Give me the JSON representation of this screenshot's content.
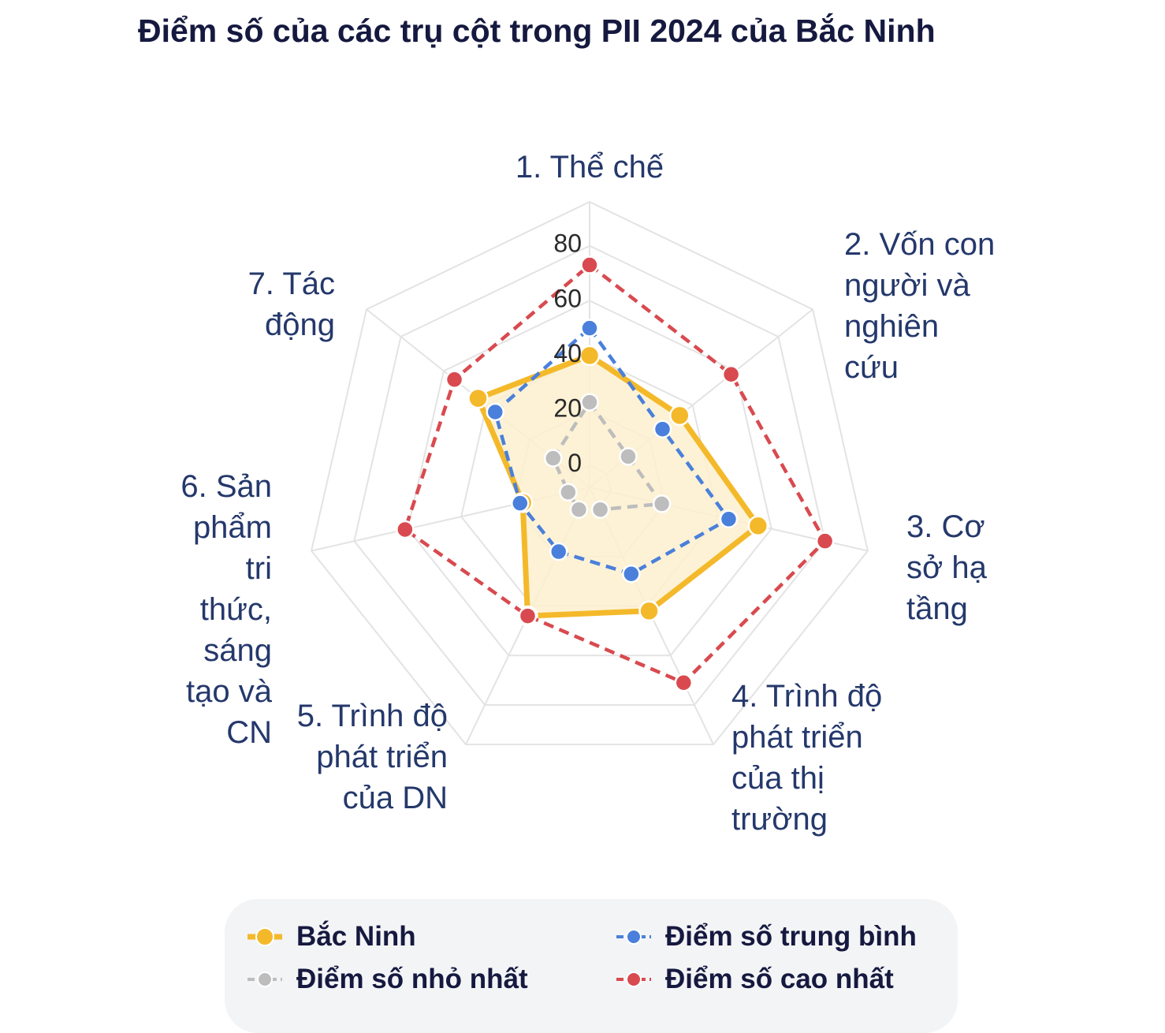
{
  "title": "Điểm số của các trụ cột trong PII 2024 của Bắc Ninh",
  "chart_data": {
    "type": "radar",
    "title": "Điểm số của các trụ cột trong PII 2024 của Bắc Ninh",
    "categories": [
      "1. Thể chế",
      "2. Vốn con\nngười và\nnghiên\ncứu",
      "3. Cơ\nsở hạ\ntầng",
      "4. Trình độ\nphát triển\ncủa thị\ntrường",
      "5. Trình độ\nphát triển\ncủa DN",
      "6. Sản\nphẩm\ntri\nthức,\nsáng\ntạo và\nCN",
      "7. Tác\nđộng"
    ],
    "radial_ticks": [
      "0",
      "20",
      "40",
      "60",
      "80"
    ],
    "radial_range": [
      -8,
      96
    ],
    "grid": true,
    "legend_position": "bottom",
    "series": [
      {
        "name": "Bắc Ninh",
        "values": [
          40,
          34,
          55,
          42,
          44,
          17,
          44
        ],
        "color": "#f4b92a",
        "fill": "#fdf0cf",
        "line": "solid"
      },
      {
        "name": "Điểm số trung bình",
        "values": [
          50,
          26,
          44,
          27,
          18,
          18,
          36
        ],
        "color": "#4a80db",
        "line": "dash"
      },
      {
        "name": "Điểm số nhỏ nhất",
        "values": [
          23,
          10,
          19,
          1,
          1,
          0,
          9
        ],
        "color": "#bdbdbd",
        "line": "dash"
      },
      {
        "name": "Điểm số cao nhất",
        "values": [
          73,
          58,
          80,
          71,
          44,
          61,
          55
        ],
        "color": "#d84a4f",
        "line": "dash"
      }
    ]
  }
}
